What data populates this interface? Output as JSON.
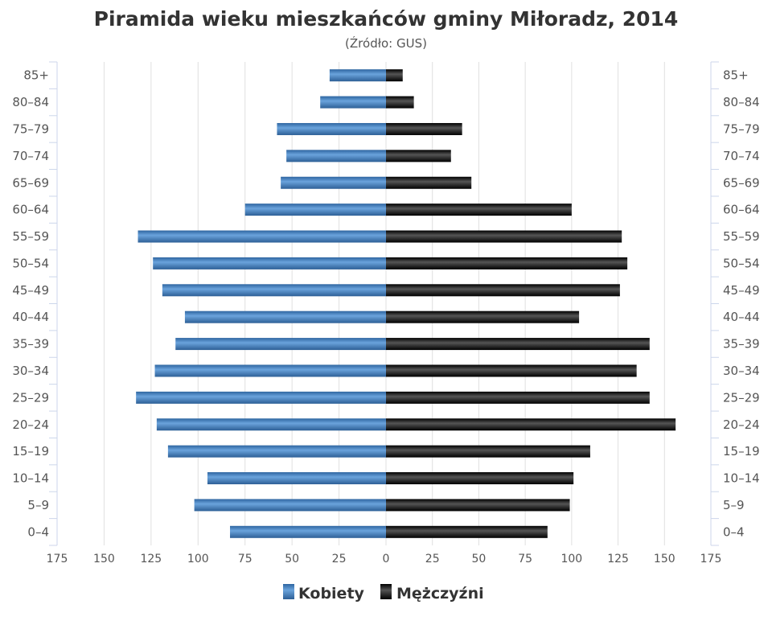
{
  "chart_data": {
    "type": "bar",
    "orientation": "horizontal-pyramid",
    "title": "Piramida wieku mieszkańców gminy Miłoradz, 2014",
    "subtitle": "(Źródło: GUS)",
    "categories": [
      "85+",
      "80–84",
      "75–79",
      "70–74",
      "65–69",
      "60–64",
      "55–59",
      "50–54",
      "45–49",
      "40–44",
      "35–39",
      "30–34",
      "25–29",
      "20–24",
      "15–19",
      "10–14",
      "5–9",
      "0–4"
    ],
    "series": [
      {
        "name": "Kobiety",
        "color": "#3d7ab8",
        "side": "left",
        "values": [
          30,
          35,
          58,
          53,
          56,
          75,
          132,
          124,
          119,
          107,
          112,
          123,
          133,
          122,
          116,
          95,
          102,
          83
        ]
      },
      {
        "name": "Mężczyźni",
        "color": "#1a1a1a",
        "side": "right",
        "values": [
          9,
          15,
          41,
          35,
          46,
          100,
          127,
          130,
          126,
          104,
          142,
          135,
          142,
          156,
          110,
          101,
          99,
          87
        ]
      }
    ],
    "xlim": [
      -175,
      175
    ],
    "xticks": [
      "175",
      "150",
      "125",
      "100",
      "75",
      "50",
      "25",
      "0",
      "25",
      "50",
      "75",
      "100",
      "125",
      "150",
      "175"
    ],
    "grid": true,
    "legend": "bottom"
  }
}
